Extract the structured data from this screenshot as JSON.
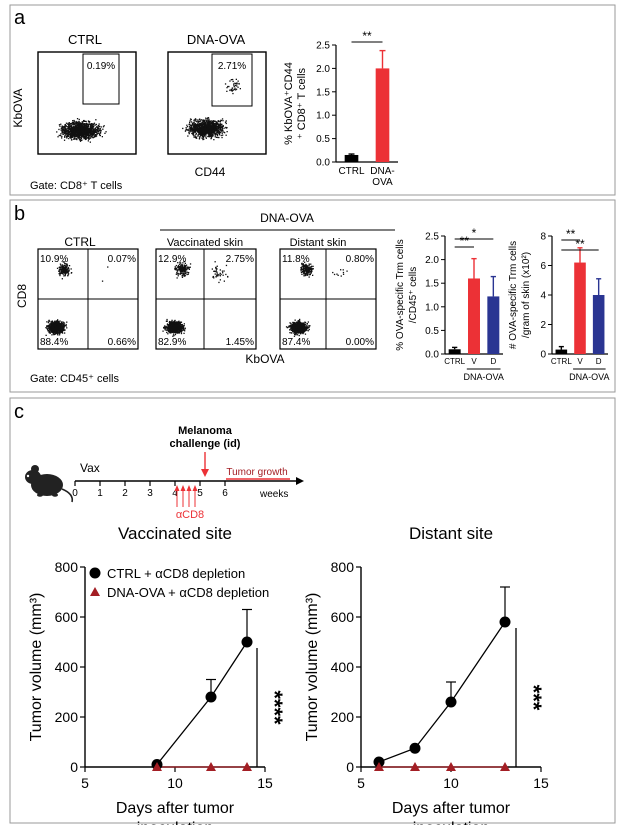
{
  "figure": {
    "panel_a": {
      "letter": "a",
      "flow1": {
        "title": "CTRL",
        "gate_pct": "0.19%"
      },
      "flow2": {
        "title": "DNA-OVA",
        "gate_pct": "2.71%"
      },
      "y_axis": "KbOVA",
      "x_axis": "CD44",
      "gate_note": "Gate: CD8⁺ T cells"
    },
    "panel_b": {
      "letter": "b",
      "group_title": "DNA-OVA",
      "flow1": {
        "title": "CTRL",
        "q": [
          "10.9%",
          "0.07%",
          "88.4%",
          "0.66%"
        ]
      },
      "flow2": {
        "title": "Vaccinated skin",
        "q": [
          "12.9%",
          "2.75%",
          "82.9%",
          "1.45%"
        ]
      },
      "flow3": {
        "title": "Distant skin",
        "q": [
          "11.8%",
          "0.80%",
          "87.4%",
          "0.00%"
        ]
      },
      "y_axis": "CD8",
      "x_axis": "KbOVA",
      "gate_note": "Gate: CD45⁺ cells"
    },
    "panel_c": {
      "letter": "c",
      "timeline": {
        "ticks": [
          "0",
          "1",
          "2",
          "3",
          "4",
          "5",
          "6"
        ],
        "vax": "Vax",
        "challenge_line1": "Melanoma",
        "challenge_line2": "challenge (id)",
        "growth": "Tumor growth",
        "weeks": "weeks",
        "depletion": "αCD8"
      }
    }
  },
  "colors": {
    "ctrl": "#000000",
    "dna": "#ec3136",
    "blue": "#2a3592",
    "red_dark": "#a31e24"
  },
  "chart_data": [
    {
      "id": "a_bar",
      "type": "bar",
      "ylabel": "% KbOVA⁺CD44⁺ CD8⁺ T cells",
      "ylim": [
        0,
        2.5
      ],
      "yticks": [
        "0.0",
        "0.5",
        "1.0",
        "1.5",
        "2.0",
        "2.5"
      ],
      "categories": [
        "CTRL",
        "DNA-OVA"
      ],
      "values": [
        0.15,
        2.0
      ],
      "errors": [
        0.02,
        0.38
      ],
      "colors": [
        "#000000",
        "#ec3136"
      ],
      "sig": [
        {
          "from": 0,
          "to": 1,
          "label": "**"
        }
      ]
    },
    {
      "id": "b_bar1",
      "type": "bar",
      "ylabel": "% OVA-specific Trm cells /CD45⁺ cells",
      "ylim": [
        0,
        2.5
      ],
      "yticks": [
        "0.0",
        "0.5",
        "1.0",
        "1.5",
        "2.0",
        "2.5"
      ],
      "categories": [
        "CTRL",
        "V",
        "D"
      ],
      "group_label": "DNA-OVA",
      "values": [
        0.1,
        1.6,
        1.22
      ],
      "errors": [
        0.04,
        0.42,
        0.42
      ],
      "colors": [
        "#000000",
        "#ec3136",
        "#2a3592"
      ],
      "sig": [
        {
          "from": 0,
          "to": 1,
          "label": "**"
        },
        {
          "from": 0,
          "to": 2,
          "label": "*"
        }
      ]
    },
    {
      "id": "b_bar2",
      "type": "bar",
      "ylabel": "# OVA-specific Trm cells /gram of skin (x10²)",
      "ylim": [
        0,
        8
      ],
      "yticks": [
        "0",
        "2",
        "4",
        "6",
        "8"
      ],
      "categories": [
        "CTRL",
        "V",
        "D"
      ],
      "group_label": "DNA-OVA",
      "values": [
        0.3,
        6.2,
        4.0
      ],
      "errors": [
        0.2,
        1.0,
        1.1
      ],
      "colors": [
        "#000000",
        "#ec3136",
        "#2a3592"
      ],
      "sig": [
        {
          "from": 0,
          "to": 1,
          "label": "**"
        },
        {
          "from": 0,
          "to": 2,
          "label": "**"
        }
      ]
    },
    {
      "id": "c_vacc",
      "type": "line",
      "title": "Vaccinated site",
      "xlabel": "Days after tumor inoculation",
      "ylabel": "Tumor volume (mm³)",
      "xlim": [
        5,
        15
      ],
      "ylim": [
        0,
        800
      ],
      "xticks": [
        "5",
        "10",
        "15"
      ],
      "yticks": [
        "0",
        "200",
        "400",
        "600",
        "800"
      ],
      "series": [
        {
          "name": "CTRL + αCD8 depletion",
          "x": [
            9,
            12,
            14
          ],
          "y": [
            10,
            280,
            500
          ],
          "err": [
            0,
            70,
            130
          ]
        },
        {
          "name": "DNA-OVA + αCD8 depletion",
          "x": [
            9,
            12,
            14
          ],
          "y": [
            0,
            0,
            0
          ],
          "err": [
            0,
            0,
            0
          ]
        }
      ],
      "sig": "****"
    },
    {
      "id": "c_dist",
      "type": "line",
      "title": "Distant site",
      "xlabel": "Days after tumor inoculation",
      "ylabel": "Tumor volume (mm³)",
      "xlim": [
        5,
        15
      ],
      "ylim": [
        0,
        800
      ],
      "xticks": [
        "5",
        "10",
        "15"
      ],
      "yticks": [
        "0",
        "200",
        "400",
        "600",
        "800"
      ],
      "series": [
        {
          "name": "CTRL + αCD8 depletion",
          "x": [
            6,
            8,
            10,
            13
          ],
          "y": [
            20,
            75,
            260,
            580
          ],
          "err": [
            0,
            0,
            80,
            140
          ]
        },
        {
          "name": "DNA-OVA + αCD8 depletion",
          "x": [
            6,
            8,
            10,
            13
          ],
          "y": [
            0,
            0,
            0,
            0
          ],
          "err": [
            0,
            0,
            0,
            0
          ]
        }
      ],
      "sig": "***"
    }
  ]
}
